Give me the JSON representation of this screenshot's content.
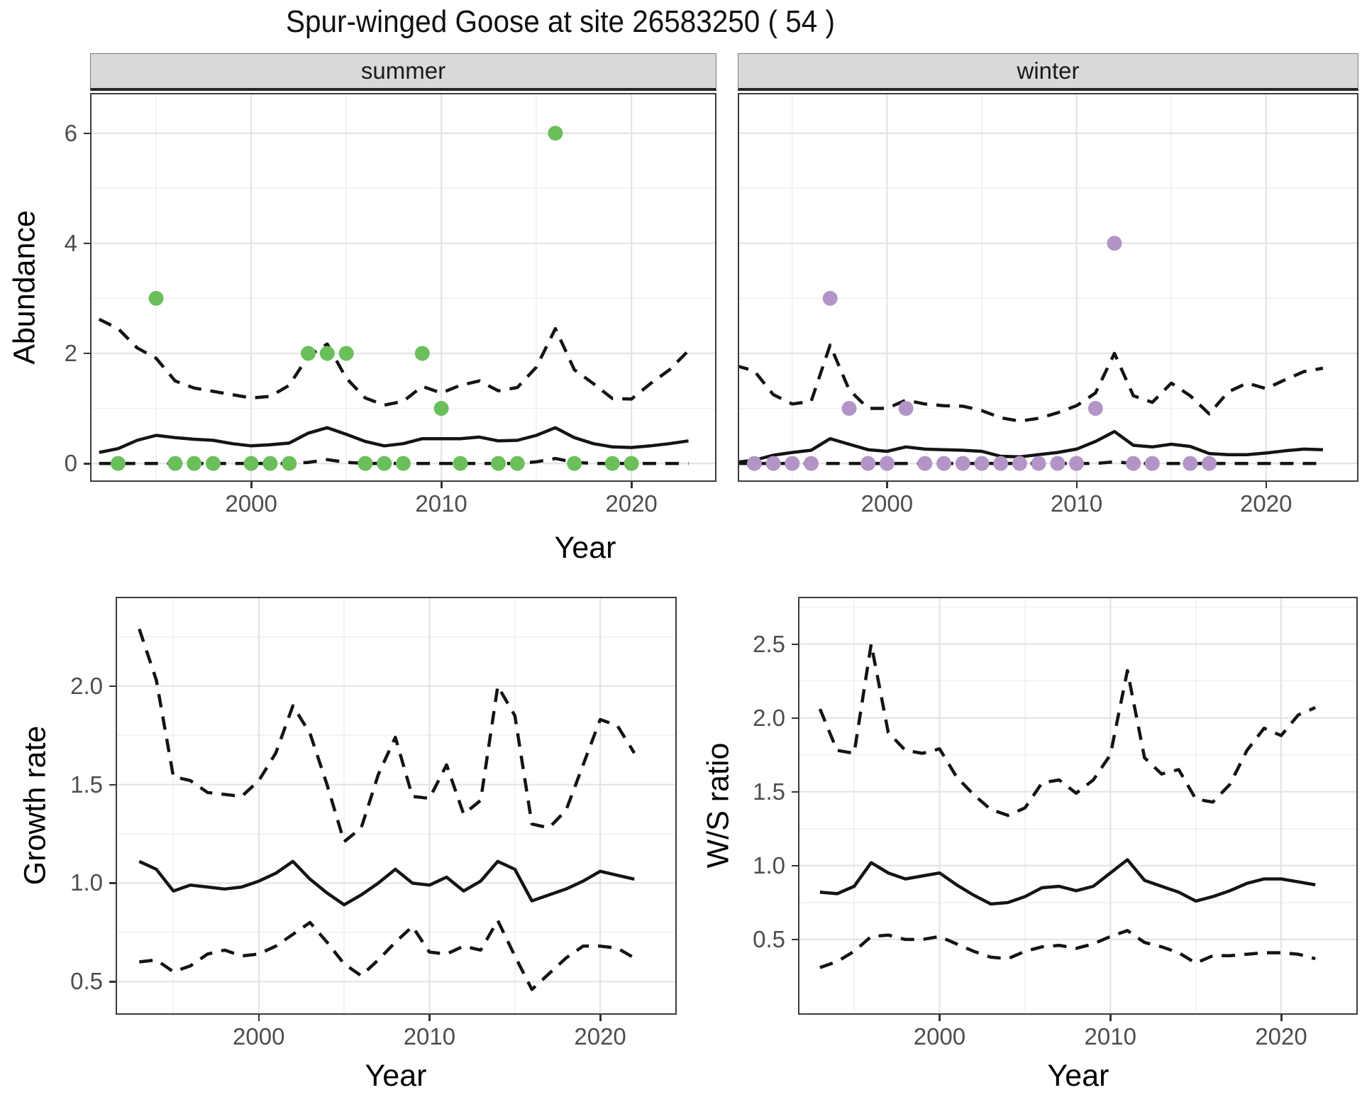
{
  "chart_data": {
    "type": "line",
    "title": "Spur-winged Goose at site 26583250 ( 54 )",
    "legend": "none",
    "grid": "on",
    "line_color": "#141414",
    "panels": [
      {
        "id": "abundance-summer",
        "facet": "summer",
        "ylabel": "Abundance",
        "xlabel": "Year",
        "x_domain": [
          1991.6,
          2024.4
        ],
        "y_domain": [
          -0.308,
          6.705
        ],
        "x_ticks": [
          2000,
          2010,
          2020
        ],
        "x_tick_labels": [
          "2000",
          "2010",
          "2020"
        ],
        "x_minor": [
          1995,
          2005,
          2015
        ],
        "y_ticks": [
          0,
          2,
          4,
          6
        ],
        "y_tick_labels": [
          "0",
          "2",
          "4",
          "6"
        ],
        "y_minor": [
          1,
          3,
          5
        ],
        "show_y_ticks": true,
        "lines": [
          {
            "name": "upper-ci",
            "style": "dashed",
            "x_start": 1992,
            "y": [
              2.62,
              2.45,
              2.1,
              1.91,
              1.5,
              1.37,
              1.31,
              1.25,
              1.19,
              1.22,
              1.42,
              1.95,
              2.17,
              1.55,
              1.19,
              1.06,
              1.13,
              1.4,
              1.28,
              1.42,
              1.5,
              1.32,
              1.38,
              1.75,
              2.45,
              1.7,
              1.45,
              1.18,
              1.17,
              1.45,
              1.7,
              2.05
            ]
          },
          {
            "name": "median",
            "style": "solid",
            "x_start": 1992,
            "y": [
              0.2,
              0.27,
              0.42,
              0.51,
              0.47,
              0.44,
              0.42,
              0.36,
              0.32,
              0.34,
              0.37,
              0.55,
              0.65,
              0.53,
              0.4,
              0.32,
              0.36,
              0.45,
              0.45,
              0.45,
              0.48,
              0.41,
              0.42,
              0.51,
              0.65,
              0.47,
              0.36,
              0.3,
              0.29,
              0.32,
              0.36,
              0.41
            ]
          },
          {
            "name": "lower-ci",
            "style": "dashed",
            "x_start": 1992,
            "y": [
              0,
              0,
              0,
              0,
              0,
              0,
              0,
              0,
              0,
              0,
              0,
              0.02,
              0.07,
              0.02,
              0,
              0,
              0,
              0,
              0,
              0,
              0,
              0,
              0,
              0.03,
              0.09,
              0.02,
              0,
              0,
              0,
              0,
              0,
              0
            ]
          }
        ],
        "points": {
          "color": "#6ABF5B",
          "color_name": "green",
          "data": [
            [
              1993,
              0
            ],
            [
              1995,
              3
            ],
            [
              1996,
              0
            ],
            [
              1997,
              0
            ],
            [
              1998,
              0
            ],
            [
              2000,
              0
            ],
            [
              2001,
              0
            ],
            [
              2002,
              0
            ],
            [
              2003,
              2
            ],
            [
              2004,
              2
            ],
            [
              2005,
              2
            ],
            [
              2006,
              0
            ],
            [
              2007,
              0
            ],
            [
              2008,
              0
            ],
            [
              2009,
              2
            ],
            [
              2010,
              1
            ],
            [
              2011,
              0
            ],
            [
              2013,
              0
            ],
            [
              2014,
              0
            ],
            [
              2016,
              6
            ],
            [
              2017,
              0
            ],
            [
              2019,
              0
            ],
            [
              2020,
              0
            ]
          ]
        }
      },
      {
        "id": "abundance-winter",
        "facet": "winter",
        "ylabel": "Abundance",
        "xlabel": "Year",
        "x_domain": [
          1992.2,
          2024.8
        ],
        "y_domain": [
          -0.308,
          6.705
        ],
        "x_ticks": [
          2000,
          2010,
          2020
        ],
        "x_tick_labels": [
          "2000",
          "2010",
          "2020"
        ],
        "x_minor": [
          1995,
          2005,
          2015
        ],
        "y_ticks": [
          0,
          2,
          4,
          6
        ],
        "y_tick_labels": [
          "0",
          "2",
          "4",
          "6"
        ],
        "y_minor": [
          1,
          3,
          5
        ],
        "show_y_ticks": false,
        "lines": [
          {
            "name": "upper-ci",
            "style": "dashed",
            "x_start": 1992,
            "y": [
              1.78,
              1.68,
              1.25,
              1.08,
              1.13,
              2.15,
              1.34,
              1.0,
              1.0,
              1.15,
              1.08,
              1.05,
              1.04,
              0.96,
              0.83,
              0.77,
              0.82,
              0.92,
              1.05,
              1.28,
              2.0,
              1.23,
              1.11,
              1.46,
              1.23,
              0.9,
              1.3,
              1.46,
              1.36,
              1.52,
              1.67,
              1.73
            ]
          },
          {
            "name": "median",
            "style": "solid",
            "x_start": 1992,
            "y": [
              0.02,
              0.06,
              0.15,
              0.2,
              0.24,
              0.45,
              0.35,
              0.25,
              0.22,
              0.3,
              0.26,
              0.25,
              0.24,
              0.22,
              0.13,
              0.12,
              0.16,
              0.2,
              0.26,
              0.4,
              0.58,
              0.33,
              0.3,
              0.35,
              0.31,
              0.18,
              0.16,
              0.16,
              0.19,
              0.23,
              0.26,
              0.25
            ]
          },
          {
            "name": "lower-ci",
            "style": "dashed",
            "x_start": 1992,
            "y": [
              0,
              0,
              0,
              0,
              0,
              0,
              0,
              0,
              0,
              0,
              0,
              0,
              0,
              0,
              0,
              0,
              0,
              0,
              0,
              0,
              0.03,
              0,
              0,
              0,
              0,
              0,
              0,
              0,
              0,
              0,
              0,
              0
            ]
          }
        ],
        "points": {
          "color": "#B294C7",
          "color_name": "purple",
          "data": [
            [
              1993,
              0
            ],
            [
              1994,
              0
            ],
            [
              1995,
              0
            ],
            [
              1996,
              0
            ],
            [
              1997,
              3
            ],
            [
              1998,
              1
            ],
            [
              1999,
              0
            ],
            [
              2000,
              0
            ],
            [
              2001,
              1
            ],
            [
              2002,
              0
            ],
            [
              2003,
              0
            ],
            [
              2004,
              0
            ],
            [
              2005,
              0
            ],
            [
              2006,
              0
            ],
            [
              2007,
              0
            ],
            [
              2008,
              0
            ],
            [
              2009,
              0
            ],
            [
              2010,
              0
            ],
            [
              2011,
              1
            ],
            [
              2012,
              4
            ],
            [
              2013,
              0
            ],
            [
              2014,
              0
            ],
            [
              2016,
              0
            ],
            [
              2017,
              0
            ]
          ]
        }
      },
      {
        "id": "growth-rate",
        "facet": "",
        "ylabel": "Growth rate",
        "xlabel": "Year",
        "x_domain": [
          1991.7,
          2024.4
        ],
        "y_domain": [
          0.339,
          2.446
        ],
        "x_ticks": [
          2000,
          2010,
          2020
        ],
        "x_tick_labels": [
          "2000",
          "2010",
          "2020"
        ],
        "x_minor": [
          1995,
          2005,
          2015
        ],
        "y_ticks": [
          0.5,
          1.0,
          1.5,
          2.0
        ],
        "y_tick_labels": [
          "0.5",
          "1.0",
          "1.5",
          "2.0"
        ],
        "y_minor": [
          0.75,
          1.25,
          1.75,
          2.25
        ],
        "show_y_ticks": true,
        "lines": [
          {
            "name": "upper-ci",
            "style": "dashed",
            "x_start": 1993,
            "y": [
              2.29,
              2.03,
              1.54,
              1.52,
              1.46,
              1.45,
              1.44,
              1.52,
              1.66,
              1.9,
              1.76,
              1.5,
              1.21,
              1.28,
              1.55,
              1.74,
              1.44,
              1.43,
              1.6,
              1.35,
              1.42,
              2.0,
              1.85,
              1.3,
              1.28,
              1.37,
              1.6,
              1.83,
              1.8,
              1.66
            ]
          },
          {
            "name": "median",
            "style": "solid",
            "x_start": 1993,
            "y": [
              1.11,
              1.07,
              0.96,
              0.99,
              0.98,
              0.97,
              0.98,
              1.01,
              1.05,
              1.11,
              1.02,
              0.95,
              0.89,
              0.94,
              1.0,
              1.07,
              1.0,
              0.99,
              1.03,
              0.96,
              1.01,
              1.11,
              1.07,
              0.91,
              0.94,
              0.97,
              1.01,
              1.06,
              1.04,
              1.02
            ]
          },
          {
            "name": "lower-ci",
            "style": "dashed",
            "x_start": 1993,
            "y": [
              0.6,
              0.61,
              0.55,
              0.58,
              0.64,
              0.66,
              0.63,
              0.64,
              0.68,
              0.74,
              0.8,
              0.7,
              0.59,
              0.53,
              0.61,
              0.7,
              0.78,
              0.65,
              0.64,
              0.68,
              0.66,
              0.81,
              0.63,
              0.46,
              0.54,
              0.62,
              0.68,
              0.68,
              0.67,
              0.62
            ]
          }
        ],
        "points": null
      },
      {
        "id": "ws-ratio",
        "facet": "",
        "ylabel": "W/S ratio",
        "xlabel": "Year",
        "x_domain": [
          1991.8,
          2024.4
        ],
        "y_domain": [
          0.0,
          2.81
        ],
        "x_ticks": [
          2000,
          2010,
          2020
        ],
        "x_tick_labels": [
          "2000",
          "2010",
          "2020"
        ],
        "x_minor": [
          1995,
          2005,
          2015
        ],
        "y_ticks": [
          0.5,
          1.0,
          1.5,
          2.0,
          2.5
        ],
        "y_tick_labels": [
          "0.5",
          "1.0",
          "1.5",
          "2.0",
          "2.5"
        ],
        "y_minor": [
          0.75,
          1.25,
          1.75,
          2.25,
          2.75
        ],
        "show_y_ticks": true,
        "lines": [
          {
            "name": "upper-ci",
            "style": "dashed",
            "x_start": 1993,
            "y": [
              2.06,
              1.78,
              1.76,
              2.5,
              1.9,
              1.78,
              1.76,
              1.79,
              1.6,
              1.48,
              1.38,
              1.34,
              1.39,
              1.56,
              1.58,
              1.49,
              1.58,
              1.75,
              2.32,
              1.73,
              1.62,
              1.65,
              1.45,
              1.43,
              1.55,
              1.78,
              1.93,
              1.88,
              2.02,
              2.07
            ]
          },
          {
            "name": "median",
            "style": "solid",
            "x_start": 1993,
            "y": [
              0.82,
              0.81,
              0.86,
              1.02,
              0.95,
              0.91,
              0.93,
              0.95,
              0.87,
              0.8,
              0.74,
              0.75,
              0.79,
              0.85,
              0.86,
              0.83,
              0.86,
              0.95,
              1.04,
              0.9,
              0.86,
              0.82,
              0.76,
              0.79,
              0.83,
              0.88,
              0.91,
              0.91,
              0.89,
              0.87
            ]
          },
          {
            "name": "lower-ci",
            "style": "dashed",
            "x_start": 1993,
            "y": [
              0.31,
              0.35,
              0.42,
              0.52,
              0.53,
              0.5,
              0.5,
              0.52,
              0.47,
              0.42,
              0.38,
              0.37,
              0.42,
              0.45,
              0.46,
              0.44,
              0.47,
              0.52,
              0.56,
              0.48,
              0.45,
              0.41,
              0.34,
              0.39,
              0.39,
              0.4,
              0.41,
              0.41,
              0.4,
              0.37
            ]
          }
        ],
        "points": null
      }
    ]
  }
}
